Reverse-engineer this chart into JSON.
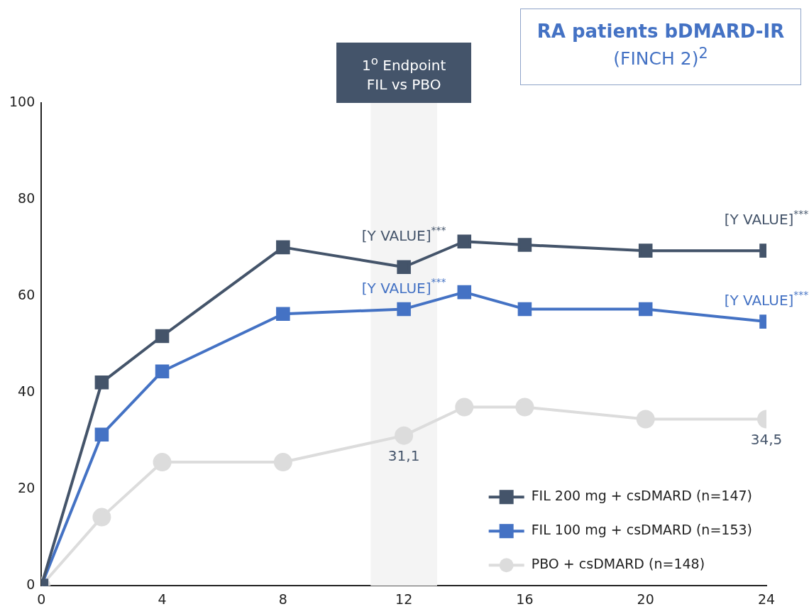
{
  "chart_data": {
    "type": "line",
    "title": "RA patients bDMARD-IR",
    "subtitle": "(FINCH 2)$^{2}$",
    "xlim": [
      0,
      24
    ],
    "xticks": [
      0,
      4,
      8,
      12,
      16,
      20,
      24
    ],
    "ylim": [
      0,
      100
    ],
    "yticks": [
      0,
      20,
      40,
      60,
      80,
      100
    ],
    "grid": false,
    "legend": "bottom right",
    "bands": [
      {
        "axis": "x",
        "from": 10.9,
        "to": 13.1,
        "label": "1$^{o}$ Endpoint FIL vs PBO",
        "color": "#f4f4f4"
      }
    ],
    "series": [
      {
        "name": "FIL 200 mg + csDMARD (n=147)",
        "color": "#44546a",
        "marker": "square",
        "x": [
          0,
          2,
          4,
          8,
          12,
          14,
          16,
          20,
          24
        ],
        "values": [
          0,
          42.1,
          51.7,
          70.1,
          66.0,
          71.3,
          70.6,
          69.4,
          69.4
        ],
        "value_labels": [
          null,
          null,
          null,
          null,
          "[Y VALUE]$^{***}$",
          null,
          null,
          null,
          "[Y VALUE]$^{***}$"
        ]
      },
      {
        "name": "FIL 100 mg + csDMARD (n=153)",
        "color": "#4472c4",
        "marker": "square",
        "x": [
          0,
          2,
          4,
          8,
          12,
          14,
          16,
          20,
          24
        ],
        "values": [
          0,
          31.3,
          44.4,
          56.3,
          57.3,
          60.8,
          57.3,
          57.3,
          54.7
        ],
        "value_labels": [
          null,
          null,
          null,
          null,
          "[Y VALUE]$^{***}$",
          null,
          null,
          null,
          "[Y VALUE]$^{***}$"
        ]
      },
      {
        "name": "PBO + csDMARD (n=148)",
        "color": "#dcdcdc",
        "marker": "circle",
        "x": [
          0,
          2,
          4,
          8,
          12,
          14,
          16,
          20,
          24
        ],
        "values": [
          0,
          14.2,
          25.6,
          25.6,
          31.1,
          37.0,
          37.0,
          34.5,
          34.5
        ],
        "value_labels": [
          null,
          null,
          null,
          null,
          "31,1",
          null,
          null,
          null,
          "34,5"
        ]
      }
    ]
  }
}
